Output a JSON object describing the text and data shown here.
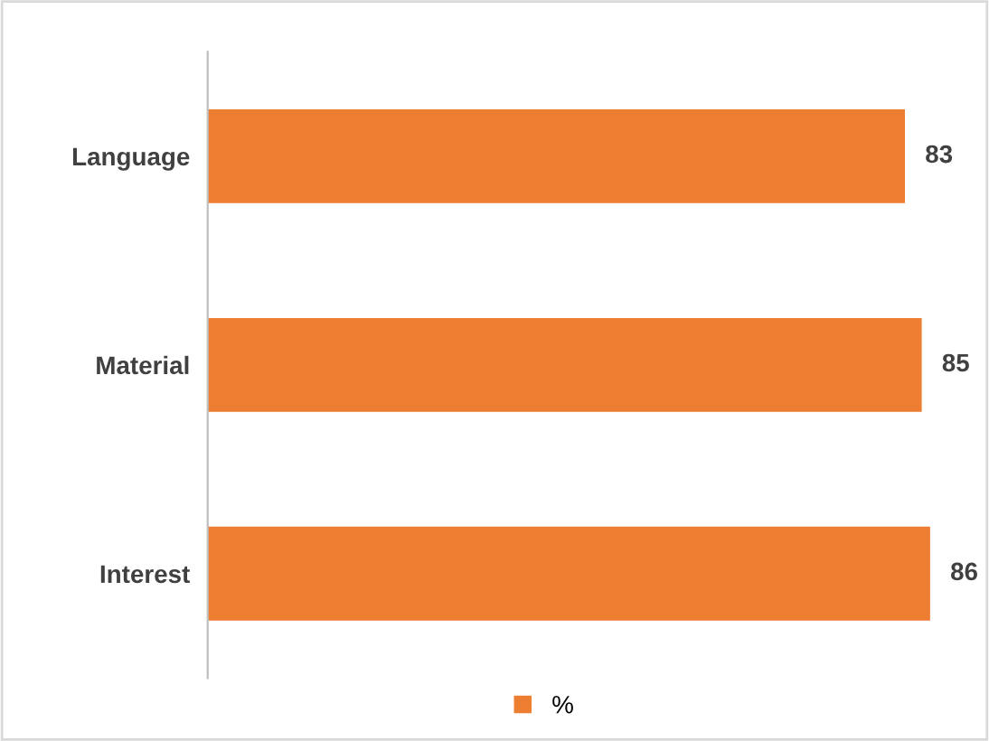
{
  "chart_data": {
    "type": "bar",
    "orientation": "horizontal",
    "categories": [
      "Language",
      "Material",
      "Interest"
    ],
    "series": [
      {
        "name": "%",
        "color": "#ed7d31",
        "values": [
          83,
          85,
          86
        ]
      }
    ],
    "tick_labels": "y",
    "data_labels": true,
    "legend": "bottom",
    "grid": false
  }
}
